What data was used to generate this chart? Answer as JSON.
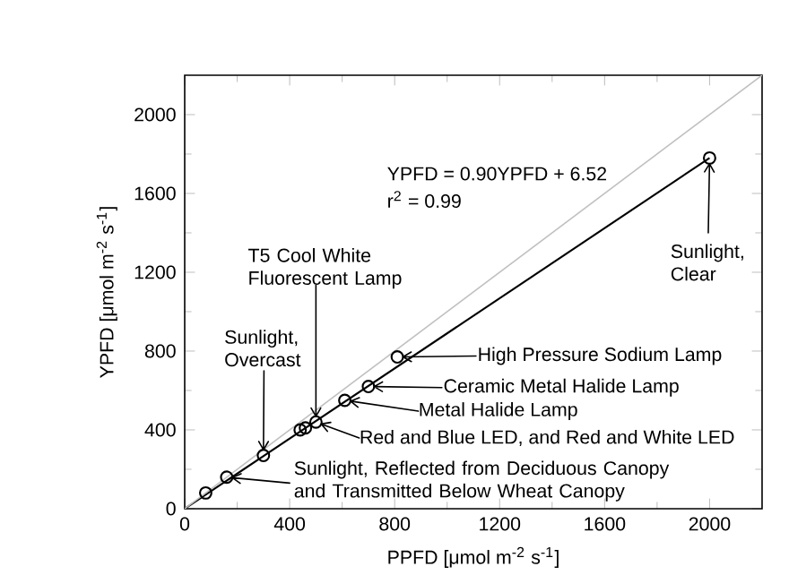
{
  "chart_data": {
    "type": "scatter",
    "xlabel": "PPFD [μmol m$^{-2}$ s$^{-1}$]",
    "ylabel": "YPFD [μmol m$^{-2}$ s$^{-1}$]",
    "xlim": [
      0,
      2200
    ],
    "ylim": [
      0,
      2200
    ],
    "xticks": [
      0,
      400,
      800,
      1200,
      1600,
      2000
    ],
    "yticks": [
      0,
      400,
      800,
      1200,
      1600,
      2000
    ],
    "marker": "circle",
    "series": [
      {
        "color": "#000000",
        "x": [
          80,
          160,
          300,
          440,
          460,
          500,
          610,
          700,
          810,
          2000
        ],
        "values": [
          80,
          160,
          270,
          400,
          410,
          440,
          550,
          620,
          770,
          1780
        ]
      },
      {
        "type": "line",
        "color": "#000000",
        "x": [
          0,
          2000
        ],
        "values": [
          0,
          1780
        ],
        "marker": "none"
      },
      {
        "type": "line",
        "color": "#c0c0c0",
        "x": [
          0,
          2200
        ],
        "values": [
          0,
          2200
        ],
        "marker": "none"
      }
    ],
    "annotations": [
      "YPFD = 0.90YPFD + 6.52",
      "r$^{2}$ = 0.99",
      {
        "text": "T5 Cool White Fluorescent Lamp",
        "x": 500,
        "y": 440
      },
      "Sunlight, Overcast",
      "Sunlight, Clear",
      "High Pressure Sodium Lamp",
      "Ceramic Metal Halide Lamp",
      "Metal Halide Lamp",
      "Red and Blue LED, and Red and White LED",
      "Sunlight, Reflected from Deciduous Canopy and Transmitted Below Wheat Canopy"
    ]
  }
}
